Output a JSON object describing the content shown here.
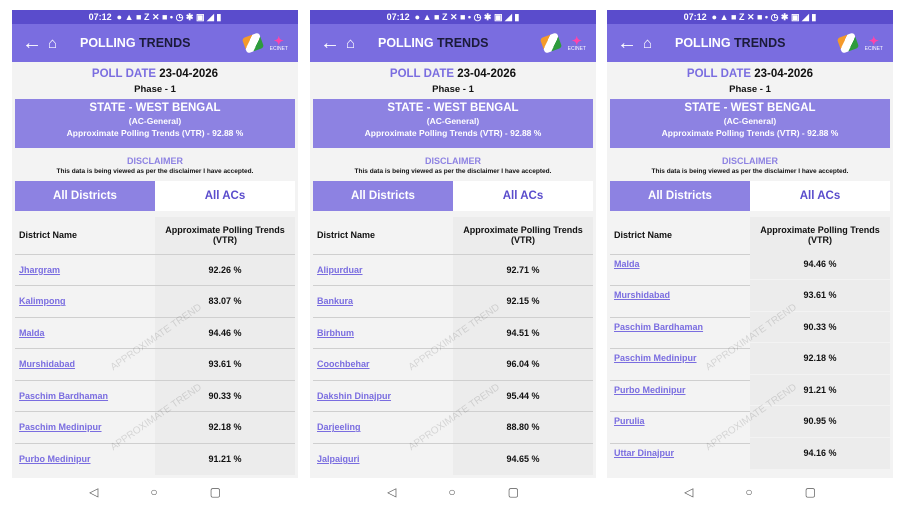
{
  "status_bar": {
    "time": "07:12"
  },
  "app_bar": {
    "title_part1": "POLLING",
    "title_part2": "TRENDS",
    "logo_text": "ECINET"
  },
  "poll": {
    "date_label": "POLL DATE",
    "date": "23-04-2026",
    "phase": "Phase - 1"
  },
  "state_box": {
    "state": "STATE - WEST BENGAL",
    "type": "(AC-General)",
    "trend": "Approximate Polling Trends (VTR) - 92.88 %"
  },
  "disclaimer": {
    "title": "DISCLAIMER",
    "text": "This data is being viewed as per the disclaimer I have accepted."
  },
  "tabs": [
    {
      "label": "All Districts",
      "active": true
    },
    {
      "label": "All ACs",
      "active": false
    }
  ],
  "table_headers": [
    "District Name",
    "Approximate Polling Trends (VTR)"
  ],
  "watermark": "APPROXIMATE TREND",
  "colors": {
    "primary": "#7a6de0",
    "status_bar": "#5a4ccc",
    "state_box": "#8d82e2"
  },
  "screens": [
    {
      "rows": [
        [
          "Jhargram",
          "92.26 %"
        ],
        [
          "Kalimpong",
          "83.07 %"
        ],
        [
          "Malda",
          "94.46 %"
        ],
        [
          "Murshidabad",
          "93.61 %"
        ],
        [
          "Paschim Bardhaman",
          "90.33 %"
        ],
        [
          "Paschim Medinipur",
          "92.18 %"
        ],
        [
          "Purbo Medinipur",
          "91.21 %"
        ]
      ]
    },
    {
      "rows": [
        [
          "Alipurduar",
          "92.71 %"
        ],
        [
          "Bankura",
          "92.15 %"
        ],
        [
          "Birbhum",
          "94.51 %"
        ],
        [
          "Coochbehar",
          "96.04 %"
        ],
        [
          "Dakshin Dinajpur",
          "95.44 %"
        ],
        [
          "Darjeeling",
          "88.80 %"
        ],
        [
          "Jalpaiguri",
          "94.65 %"
        ]
      ]
    },
    {
      "rows": [
        [
          "Malda",
          "94.46 %"
        ],
        [
          "Murshidabad",
          "93.61 %"
        ],
        [
          "Paschim Bardhaman",
          "90.33 %"
        ],
        [
          "Paschim Medinipur",
          "92.18 %"
        ],
        [
          "Purbo Medinipur",
          "91.21 %"
        ],
        [
          "Purulia",
          "90.95 %"
        ],
        [
          "Uttar Dinajpur",
          "94.16 %"
        ]
      ]
    }
  ]
}
